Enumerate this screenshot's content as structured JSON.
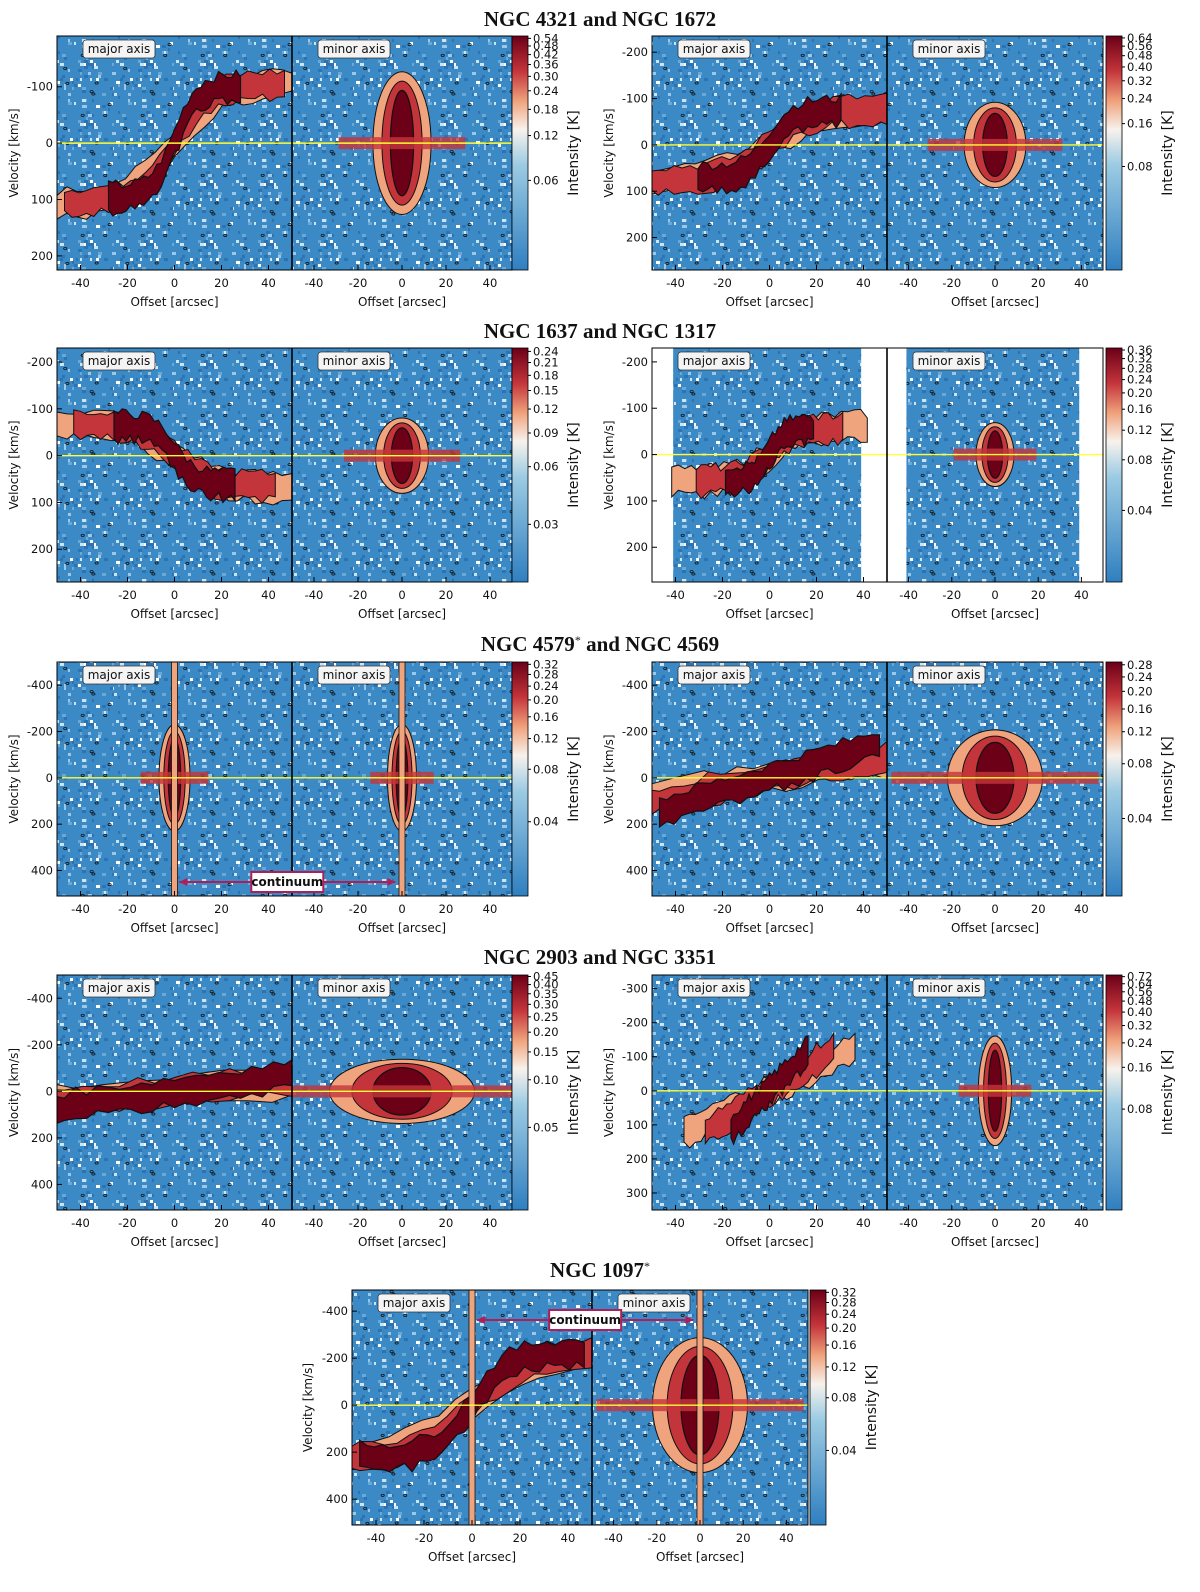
{
  "chart_data": {
    "type": "heatmap",
    "description": "Position-velocity diagrams along major and minor axes for NGC galaxies",
    "colormap": {
      "low": "#2f7fc0",
      "mid": "#f7f2ec",
      "high": "#6b0017"
    },
    "highlight_line_color": "#ffff33",
    "continuum_color": "#b01e57",
    "xlabel": "Offset [arcsec]",
    "ylabel": "Velocity [km/s]",
    "colorbar_label": "Intensity [K]",
    "axis_labels": [
      "major axis",
      "minor axis"
    ],
    "x_ticks": [
      -40,
      -20,
      0,
      20,
      40
    ],
    "xlim": [
      -50,
      50
    ],
    "groups": [
      {
        "title": "NGC 4321 and NGC 1672",
        "panels": [
          {
            "galaxy": "NGC 4321",
            "ylim": [
              -190,
              225
            ],
            "y_ticks": [
              -100,
              0,
              100,
              200
            ],
            "colorbar_ticks": [
              "0.54",
              "0.48",
              "0.42",
              "0.36",
              "0.30",
              "0.24",
              "0.18",
              "0.12",
              "0.06"
            ],
            "colorbar_values": [
              0.54,
              0.48,
              0.42,
              0.36,
              0.3,
              0.24,
              0.18,
              0.12,
              0.06
            ],
            "cbar_max": 0.56,
            "major_shape": "rotation",
            "minor_shape": "spike",
            "amp": 110,
            "width": 24
          },
          {
            "galaxy": "NGC 1672",
            "ylim": [
              -235,
              270
            ],
            "y_ticks": [
              -200,
              -100,
              0,
              100,
              200
            ],
            "colorbar_ticks": [
              "0.64",
              "0.56",
              "0.48",
              "0.40",
              "0.32",
              "0.24",
              "0.16",
              "0.08"
            ],
            "colorbar_values": [
              0.64,
              0.56,
              0.48,
              0.4,
              0.32,
              0.24,
              0.16,
              0.08
            ],
            "cbar_max": 0.66,
            "major_shape": "rotation",
            "minor_shape": "spike",
            "amp": 80,
            "width": 26
          }
        ]
      },
      {
        "title": "NGC 1637 and NGC 1317",
        "panels": [
          {
            "galaxy": "NGC 1637",
            "ylim": [
              -230,
              270
            ],
            "y_ticks": [
              -200,
              -100,
              0,
              100,
              200
            ],
            "colorbar_ticks": [
              "0.24",
              "0.21",
              "0.18",
              "0.15",
              "0.12",
              "0.09",
              "0.06",
              "0.03"
            ],
            "colorbar_values": [
              0.24,
              0.21,
              0.18,
              0.15,
              0.12,
              0.09,
              0.06,
              0.03
            ],
            "cbar_max": 0.25,
            "major_shape": "inverse",
            "minor_shape": "spike",
            "amp": 70,
            "width": 22
          },
          {
            "galaxy": "NGC 1317",
            "ylim": [
              -230,
              275
            ],
            "y_ticks": [
              -200,
              -100,
              0,
              100,
              200
            ],
            "colorbar_ticks": [
              "0.36",
              "0.32",
              "0.28",
              "0.24",
              "0.20",
              "0.16",
              "0.12",
              "0.08",
              "0.04"
            ],
            "colorbar_values": [
              0.36,
              0.32,
              0.28,
              0.24,
              0.2,
              0.16,
              0.12,
              0.08,
              0.04
            ],
            "cbar_max": 0.37,
            "major_shape": "rotation",
            "minor_shape": "spike",
            "amp": 60,
            "width": 16,
            "blank_edges": true
          }
        ]
      },
      {
        "title": "NGC 4579",
        "title_star": "*",
        "title_suffix": " and NGC 4569",
        "panels": [
          {
            "galaxy": "NGC 4579",
            "ylim": [
              -500,
              510
            ],
            "y_ticks": [
              -400,
              -200,
              0,
              200,
              400
            ],
            "colorbar_ticks": [
              "0.32",
              "0.28",
              "0.24",
              "0.20",
              "0.16",
              "0.12",
              "0.08",
              "0.04"
            ],
            "colorbar_values": [
              0.32,
              0.28,
              0.24,
              0.2,
              0.16,
              0.12,
              0.08,
              0.04
            ],
            "cbar_max": 0.33,
            "major_shape": "spike",
            "minor_shape": "spike",
            "amp": 200,
            "width": 12,
            "continuum": true
          },
          {
            "galaxy": "NGC 4569",
            "ylim": [
              -500,
              510
            ],
            "y_ticks": [
              -400,
              -200,
              0,
              200,
              400
            ],
            "colorbar_ticks": [
              "0.28",
              "0.24",
              "0.20",
              "0.16",
              "0.12",
              "0.08",
              "0.04"
            ],
            "colorbar_values": [
              0.28,
              0.24,
              0.2,
              0.16,
              0.12,
              0.08,
              0.04
            ],
            "cbar_max": 0.29,
            "major_shape": "linear",
            "minor_shape": "spike",
            "amp": 180,
            "width": 40
          }
        ]
      },
      {
        "title": "NGC 2903 and NGC 3351",
        "panels": [
          {
            "galaxy": "NGC 2903",
            "ylim": [
              -500,
              510
            ],
            "y_ticks": [
              -400,
              -200,
              0,
              200,
              400
            ],
            "colorbar_ticks": [
              "0.45",
              "0.40",
              "0.35",
              "0.30",
              "0.25",
              "0.20",
              "0.15",
              "0.10",
              "0.05"
            ],
            "colorbar_values": [
              0.45,
              0.4,
              0.35,
              0.3,
              0.25,
              0.2,
              0.15,
              0.1,
              0.05
            ],
            "cbar_max": 0.46,
            "major_shape": "linear",
            "minor_shape": "spike",
            "amp": 120,
            "width": 60
          },
          {
            "galaxy": "NGC 3351",
            "ylim": [
              -340,
              350
            ],
            "y_ticks": [
              -300,
              -200,
              -100,
              0,
              100,
              200,
              300
            ],
            "colorbar_ticks": [
              "0.72",
              "0.64",
              "0.56",
              "0.48",
              "0.40",
              "0.32",
              "0.24",
              "0.16",
              "0.08"
            ],
            "colorbar_values": [
              0.72,
              0.64,
              0.56,
              0.48,
              0.4,
              0.32,
              0.24,
              0.16,
              0.08
            ],
            "cbar_max": 0.74,
            "major_shape": "linear",
            "minor_shape": "spike",
            "amp": 140,
            "width": 14
          }
        ]
      },
      {
        "title": "NGC 1097",
        "title_star": "*",
        "title_suffix": "",
        "panels": [
          {
            "galaxy": "NGC 1097",
            "ylim": [
              -490,
              510
            ],
            "y_ticks": [
              -400,
              -200,
              0,
              200,
              400
            ],
            "colorbar_ticks": [
              "0.32",
              "0.28",
              "0.24",
              "0.20",
              "0.16",
              "0.12",
              "0.08",
              "0.04"
            ],
            "colorbar_values": [
              0.32,
              0.28,
              0.24,
              0.2,
              0.16,
              0.12,
              0.08,
              0.04
            ],
            "cbar_max": 0.33,
            "major_shape": "rotation",
            "minor_shape": "spike",
            "amp": 250,
            "width": 40,
            "continuum": true
          }
        ]
      }
    ],
    "continuum_label": "continuum"
  }
}
